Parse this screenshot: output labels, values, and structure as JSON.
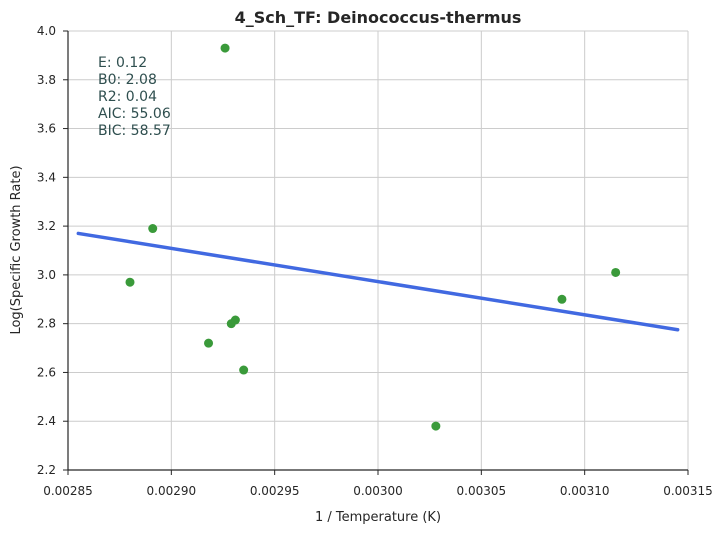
{
  "chart_data": {
    "type": "scatter",
    "title": "4_Sch_TF: Deinococcus-thermus",
    "xlabel": "1 / Temperature (K)",
    "ylabel": "Log(Specific Growth Rate)",
    "xlim": [
      0.00285,
      0.00315
    ],
    "ylim": [
      2.2,
      4.0
    ],
    "x_ticks": [
      0.00285,
      0.0029,
      0.00295,
      0.003,
      0.00305,
      0.0031,
      0.00315
    ],
    "x_tick_labels": [
      "0.00285",
      "0.00290",
      "0.00295",
      "0.00300",
      "0.00305",
      "0.00310",
      "0.00315"
    ],
    "y_ticks": [
      2.2,
      2.4,
      2.6,
      2.8,
      3.0,
      3.2,
      3.4,
      3.6,
      3.8,
      4.0
    ],
    "y_tick_labels": [
      "2.2",
      "2.4",
      "2.6",
      "2.8",
      "3.0",
      "3.2",
      "3.4",
      "3.6",
      "3.8",
      "4.0"
    ],
    "grid": true,
    "series": [
      {
        "type": "scatter",
        "color": "#3a9a3a",
        "points": [
          {
            "x": 0.00288,
            "y": 2.97
          },
          {
            "x": 0.002891,
            "y": 3.19
          },
          {
            "x": 0.002918,
            "y": 2.72
          },
          {
            "x": 0.002926,
            "y": 3.93
          },
          {
            "x": 0.002929,
            "y": 2.8
          },
          {
            "x": 0.002931,
            "y": 2.815
          },
          {
            "x": 0.002935,
            "y": 2.61
          },
          {
            "x": 0.003028,
            "y": 2.38
          },
          {
            "x": 0.003089,
            "y": 2.9
          },
          {
            "x": 0.003115,
            "y": 3.01
          }
        ]
      },
      {
        "type": "line",
        "color": "#4169e1",
        "points": [
          {
            "x": 0.002855,
            "y": 3.17
          },
          {
            "x": 0.003145,
            "y": 2.775
          }
        ]
      }
    ],
    "annotations": [
      "E:  0.12",
      "B0:  2.08",
      "R2:  0.04",
      "AIC: 55.06",
      "BIC: 58.57"
    ]
  }
}
